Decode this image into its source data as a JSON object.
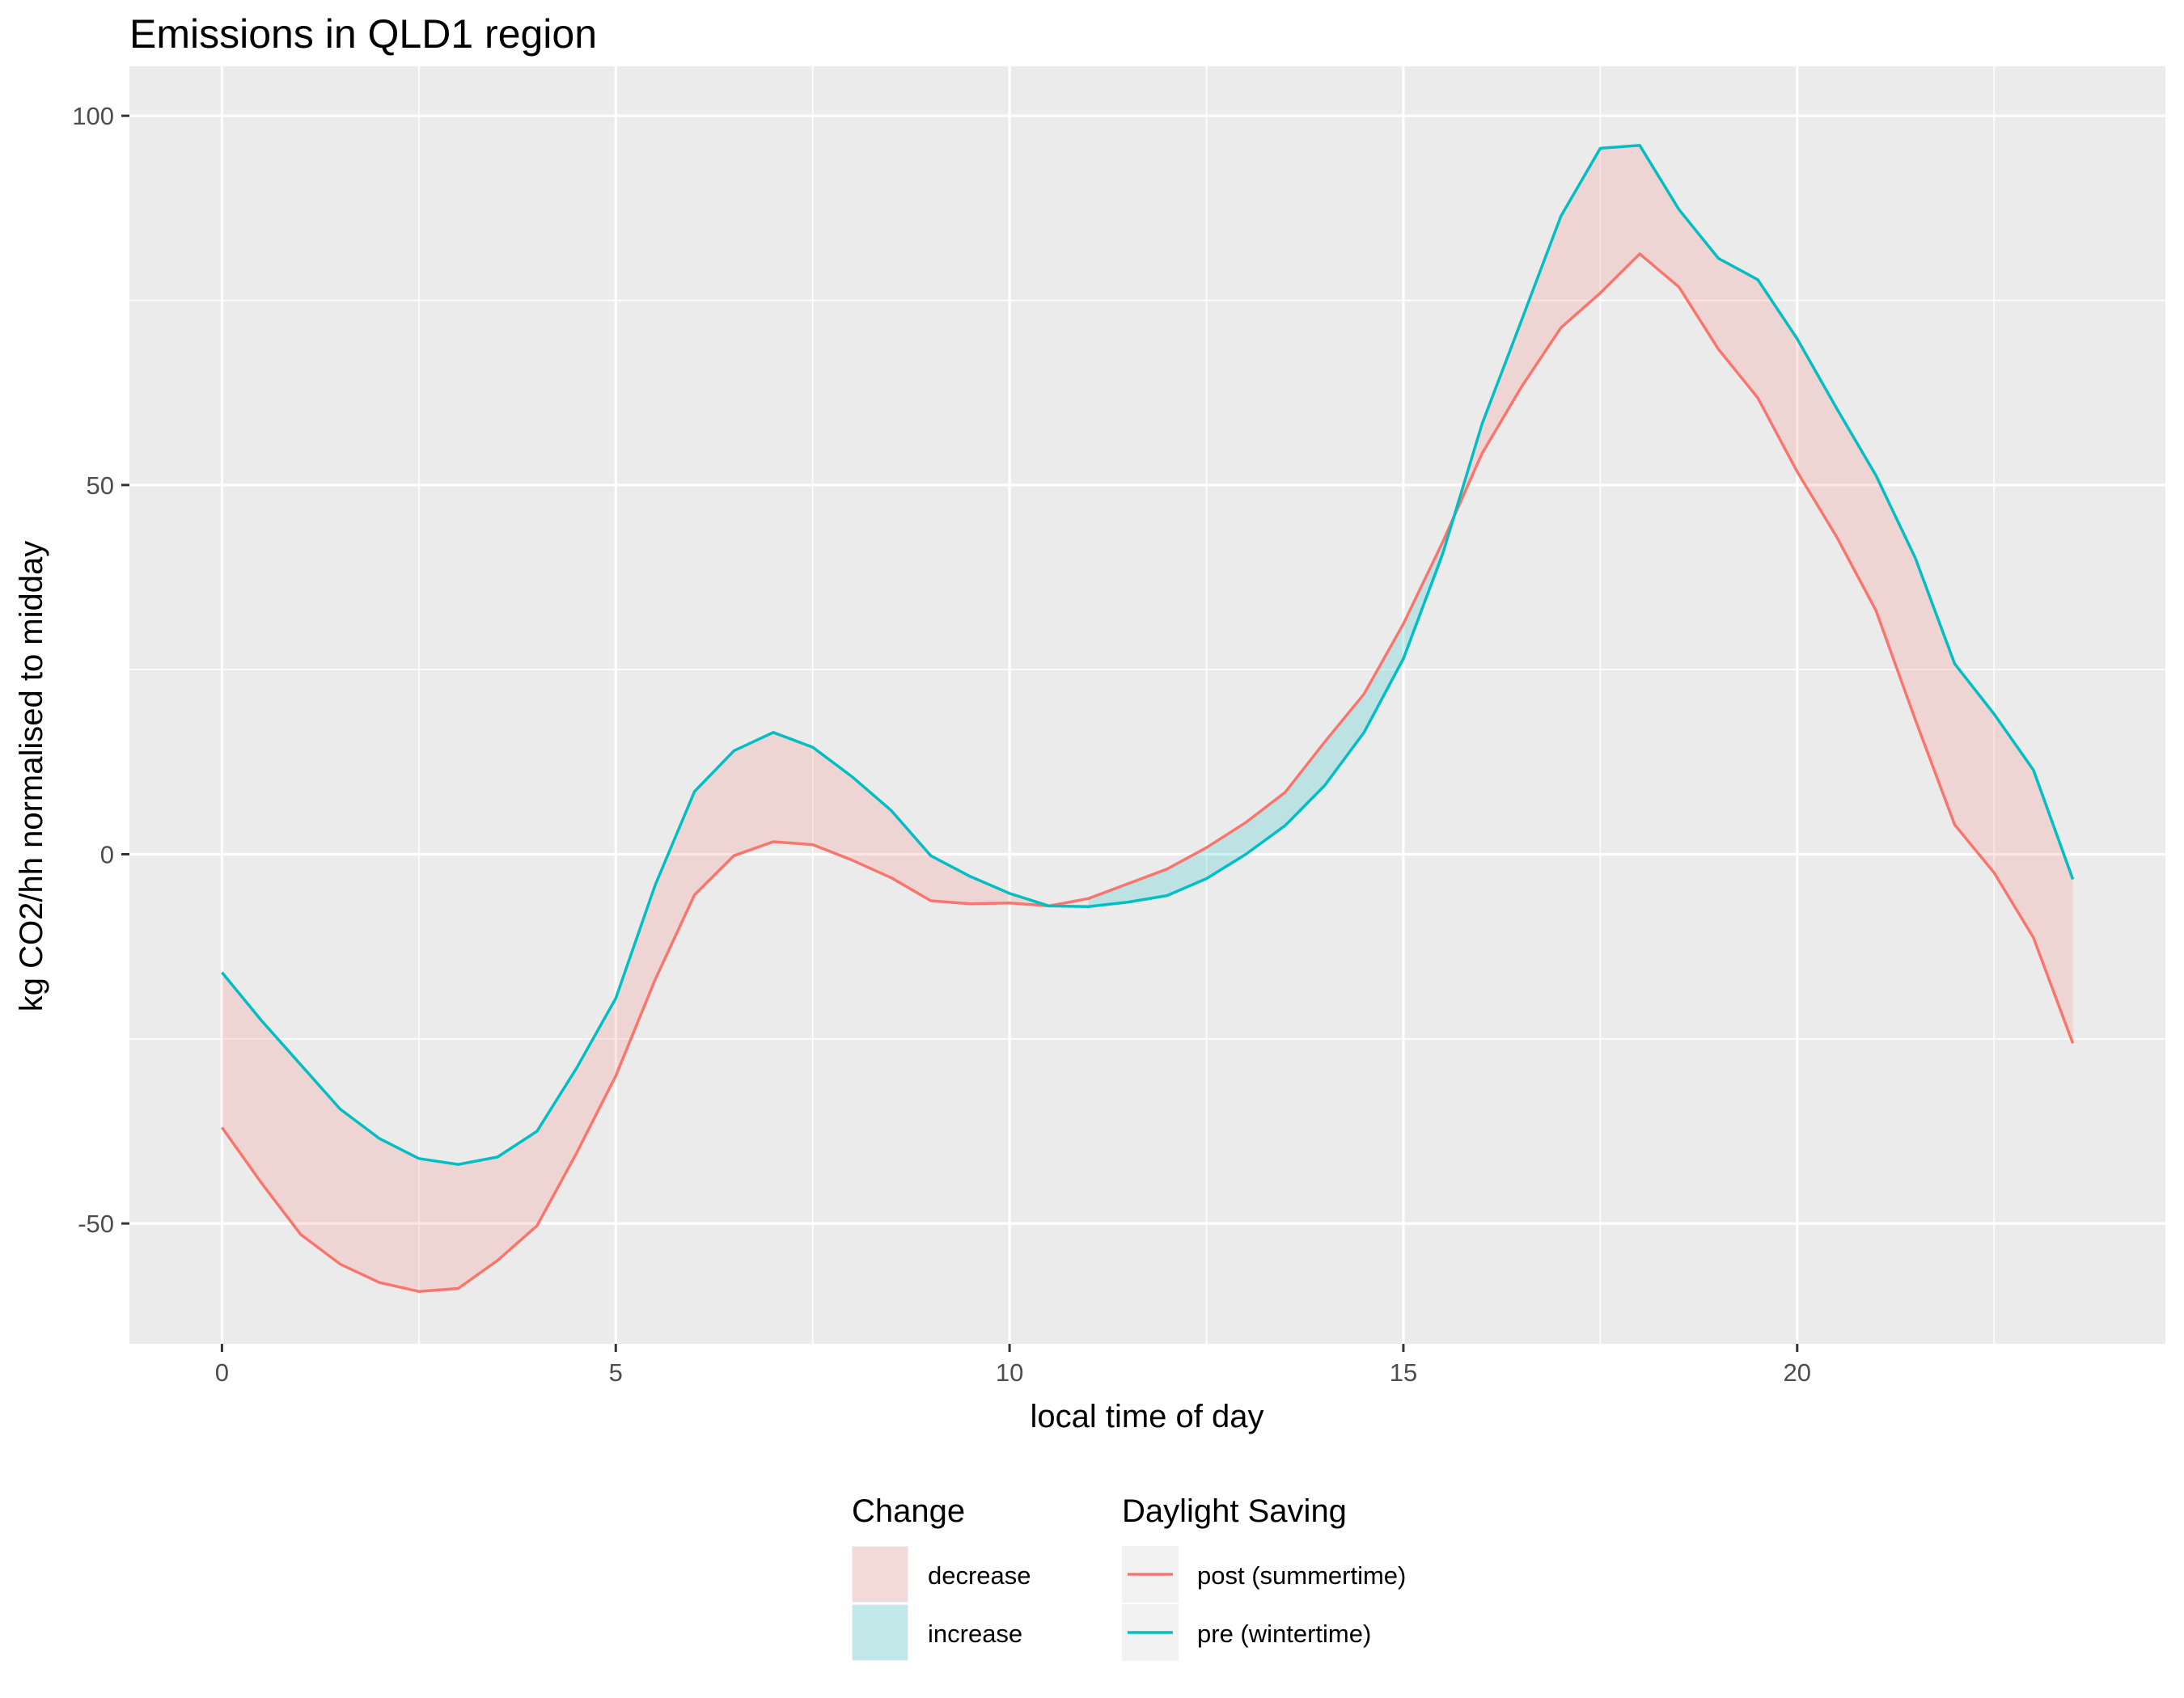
{
  "chart_data": {
    "type": "line",
    "title": "Emissions in QLD1 region",
    "xlabel": "local time of day",
    "ylabel": "kg CO2/hh normalised to midday",
    "xlim": [
      -1.175,
      24.675
    ],
    "ylim": [
      -66.3,
      106.7
    ],
    "x_ticks": [
      0,
      5,
      10,
      15,
      20
    ],
    "x_tick_labels": [
      "0",
      "5",
      "10",
      "15",
      "20"
    ],
    "x_minor_ticks": [
      2.5,
      7.5,
      12.5,
      17.5,
      22.5
    ],
    "y_ticks": [
      -50,
      0,
      50,
      100
    ],
    "y_tick_labels": [
      "-50",
      "0",
      "50",
      "100"
    ],
    "y_minor_ticks": [
      -25,
      25,
      75
    ],
    "grid": true,
    "legend_position": "bottom",
    "x": [
      0,
      0.5,
      1,
      1.5,
      2,
      2.5,
      3,
      3.5,
      4,
      4.5,
      5,
      5.5,
      6,
      6.5,
      7,
      7.5,
      8,
      8.5,
      9,
      9.5,
      10,
      10.5,
      11,
      11.5,
      12,
      12.5,
      13,
      13.5,
      14,
      14.5,
      15,
      15.5,
      16,
      16.5,
      17,
      17.5,
      18,
      18.5,
      19,
      19.5,
      20,
      20.5,
      21,
      21.5,
      22,
      22.5,
      23,
      23.5
    ],
    "series": [
      {
        "name": "post (summertime)",
        "color": "#F8766D",
        "values": [
          -37,
          -44.5,
          -51.5,
          -55.5,
          -58,
          -59.2,
          -58.8,
          -55,
          -50.3,
          -40.5,
          -30,
          -17,
          -5.5,
          -0.2,
          1.7,
          1.3,
          -0.8,
          -3.2,
          -6.3,
          -6.7,
          -6.6,
          -7,
          -6,
          -4,
          -2,
          0.9,
          4.3,
          8.4,
          15.2,
          21.7,
          31.2,
          42.3,
          54.3,
          63.3,
          71.3,
          76,
          81.3,
          76.8,
          68.4,
          61.8,
          51.8,
          43,
          33,
          18.2,
          4,
          -2.5,
          -11.3,
          -25.6
        ]
      },
      {
        "name": "pre (wintertime)",
        "color": "#00BFC4",
        "values": [
          -16,
          -22.5,
          -28.5,
          -34.5,
          -38.5,
          -41.2,
          -42,
          -41,
          -37.5,
          -29,
          -19.5,
          -4.2,
          8.5,
          14,
          16.5,
          14.5,
          10.5,
          5.9,
          -0.2,
          -3,
          -5.3,
          -7,
          -7.1,
          -6.5,
          -5.6,
          -3.3,
          0,
          3.9,
          9.3,
          16.5,
          26.5,
          40.7,
          58.3,
          72.3,
          86.4,
          95.6,
          96,
          87.3,
          80.7,
          77.8,
          69.8,
          60.4,
          51.3,
          40.1,
          25.8,
          19,
          11.4,
          -3.4
        ]
      }
    ],
    "fill_legend": {
      "title": "Change",
      "items": [
        {
          "label": "decrease",
          "color": "#F8766D"
        },
        {
          "label": "increase",
          "color": "#00BFC4"
        }
      ]
    },
    "line_legend": {
      "title": "Daylight Saving",
      "items": [
        {
          "label": "post (summertime)",
          "color": "#F8766D"
        },
        {
          "label": "pre (wintertime)",
          "color": "#00BFC4"
        }
      ]
    },
    "panel_background": "#EBEBEB"
  }
}
